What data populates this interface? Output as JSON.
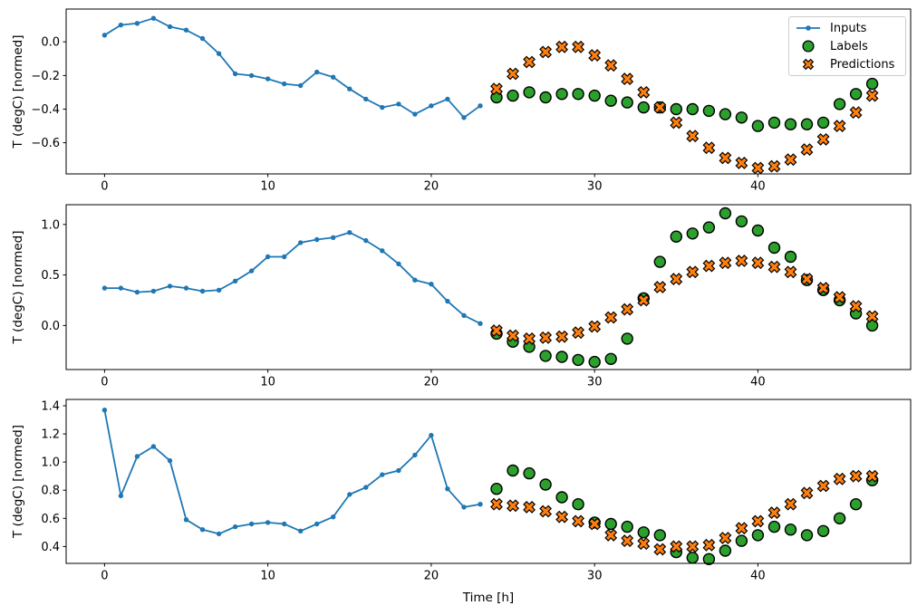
{
  "figure": {
    "background": "#ffffff",
    "xlabel": "Time [h]",
    "ylabel": "T (degC) [normed]",
    "legend": {
      "position": "upper right of subplot 1",
      "entries": [
        {
          "label": "Inputs",
          "marker": "line-dot",
          "color": "#1f77b4"
        },
        {
          "label": "Labels",
          "marker": "filled-circle",
          "color": "#2ca02c"
        },
        {
          "label": "Predictions",
          "marker": "filled-x",
          "color": "#ff7f0e"
        }
      ]
    }
  },
  "chart_data": [
    {
      "type": "line",
      "subplot": 1,
      "ylabel": "T (degC) [normed]",
      "xticks": [
        0,
        10,
        20,
        30,
        40
      ],
      "ytick_values": [
        0.0,
        -0.2,
        -0.4,
        -0.6
      ],
      "ytick_labels": [
        "0.0",
        "−0.2",
        "−0.4",
        "−0.6"
      ],
      "xlim": [
        -2.35,
        49.35
      ],
      "ylim": [
        -0.785,
        0.195
      ],
      "grid": false,
      "series": [
        {
          "name": "Inputs",
          "marker": "line-dot",
          "color": "#1f77b4",
          "x": [
            0,
            1,
            2,
            3,
            4,
            5,
            6,
            7,
            8,
            9,
            10,
            11,
            12,
            13,
            14,
            15,
            16,
            17,
            18,
            19,
            20,
            21,
            22,
            23
          ],
          "y": [
            0.04,
            0.1,
            0.11,
            0.14,
            0.09,
            0.07,
            0.02,
            -0.07,
            -0.19,
            -0.2,
            -0.22,
            -0.25,
            -0.26,
            -0.18,
            -0.21,
            -0.28,
            -0.34,
            -0.39,
            -0.37,
            -0.43,
            -0.38,
            -0.34,
            -0.45,
            -0.38
          ]
        },
        {
          "name": "Labels",
          "marker": "circle",
          "color": "#2ca02c",
          "edge": "#000000",
          "x": [
            24,
            25,
            26,
            27,
            28,
            29,
            30,
            31,
            32,
            33,
            34,
            35,
            36,
            37,
            38,
            39,
            40,
            41,
            42,
            43,
            44,
            45,
            46,
            47
          ],
          "y": [
            -0.33,
            -0.32,
            -0.3,
            -0.33,
            -0.31,
            -0.31,
            -0.32,
            -0.35,
            -0.36,
            -0.39,
            -0.39,
            -0.4,
            -0.4,
            -0.41,
            -0.43,
            -0.45,
            -0.5,
            -0.48,
            -0.49,
            -0.49,
            -0.48,
            -0.37,
            -0.31,
            -0.25
          ]
        },
        {
          "name": "Predictions",
          "marker": "X",
          "color": "#ff7f0e",
          "edge": "#000000",
          "x": [
            24,
            25,
            26,
            27,
            28,
            29,
            30,
            31,
            32,
            33,
            34,
            35,
            36,
            37,
            38,
            39,
            40,
            41,
            42,
            43,
            44,
            45,
            46,
            47
          ],
          "y": [
            -0.28,
            -0.19,
            -0.12,
            -0.06,
            -0.03,
            -0.03,
            -0.08,
            -0.14,
            -0.22,
            -0.3,
            -0.39,
            -0.48,
            -0.56,
            -0.63,
            -0.69,
            -0.72,
            -0.75,
            -0.74,
            -0.7,
            -0.64,
            -0.58,
            -0.5,
            -0.42,
            -0.32
          ]
        }
      ]
    },
    {
      "type": "line",
      "subplot": 2,
      "ylabel": "T (degC) [normed]",
      "xticks": [
        0,
        10,
        20,
        30,
        40
      ],
      "ytick_values": [
        1.0,
        0.5,
        0.0
      ],
      "ytick_labels": [
        "1.0",
        "0.5",
        "0.0"
      ],
      "xlim": [
        -2.35,
        49.35
      ],
      "ylim": [
        -0.435,
        1.195
      ],
      "grid": false,
      "series": [
        {
          "name": "Inputs",
          "marker": "line-dot",
          "color": "#1f77b4",
          "x": [
            0,
            1,
            2,
            3,
            4,
            5,
            6,
            7,
            8,
            9,
            10,
            11,
            12,
            13,
            14,
            15,
            16,
            17,
            18,
            19,
            20,
            21,
            22,
            23
          ],
          "y": [
            0.37,
            0.37,
            0.33,
            0.34,
            0.39,
            0.37,
            0.34,
            0.35,
            0.44,
            0.54,
            0.68,
            0.68,
            0.82,
            0.85,
            0.87,
            0.92,
            0.84,
            0.74,
            0.61,
            0.45,
            0.41,
            0.24,
            0.1,
            0.02
          ]
        },
        {
          "name": "Labels",
          "marker": "circle",
          "color": "#2ca02c",
          "edge": "#000000",
          "x": [
            24,
            25,
            26,
            27,
            28,
            29,
            30,
            31,
            32,
            33,
            34,
            35,
            36,
            37,
            38,
            39,
            40,
            41,
            42,
            43,
            44,
            45,
            46,
            47
          ],
          "y": [
            -0.08,
            -0.16,
            -0.21,
            -0.3,
            -0.31,
            -0.34,
            -0.36,
            -0.33,
            -0.13,
            0.27,
            0.63,
            0.88,
            0.91,
            0.97,
            1.11,
            1.03,
            0.94,
            0.77,
            0.68,
            0.45,
            0.35,
            0.25,
            0.12,
            0.0
          ]
        },
        {
          "name": "Predictions",
          "marker": "X",
          "color": "#ff7f0e",
          "edge": "#000000",
          "x": [
            24,
            25,
            26,
            27,
            28,
            29,
            30,
            31,
            32,
            33,
            34,
            35,
            36,
            37,
            38,
            39,
            40,
            41,
            42,
            43,
            44,
            45,
            46,
            47
          ],
          "y": [
            -0.05,
            -0.1,
            -0.13,
            -0.12,
            -0.11,
            -0.07,
            -0.01,
            0.08,
            0.16,
            0.25,
            0.38,
            0.46,
            0.53,
            0.59,
            0.62,
            0.64,
            0.62,
            0.58,
            0.53,
            0.46,
            0.37,
            0.28,
            0.19,
            0.09
          ]
        }
      ]
    },
    {
      "type": "line",
      "subplot": 3,
      "ylabel": "T (degC) [normed]",
      "xlabel": "Time [h]",
      "xticks": [
        0,
        10,
        20,
        30,
        40
      ],
      "ytick_values": [
        1.4,
        1.2,
        1.0,
        0.8,
        0.6,
        0.4
      ],
      "ytick_labels": [
        "1.4",
        "1.2",
        "1.0",
        "0.8",
        "0.6",
        "0.4"
      ],
      "xlim": [
        -2.35,
        49.35
      ],
      "ylim": [
        0.28,
        1.445
      ],
      "grid": false,
      "series": [
        {
          "name": "Inputs",
          "marker": "line-dot",
          "color": "#1f77b4",
          "x": [
            0,
            1,
            2,
            3,
            4,
            5,
            6,
            7,
            8,
            9,
            10,
            11,
            12,
            13,
            14,
            15,
            16,
            17,
            18,
            19,
            20,
            21,
            22,
            23
          ],
          "y": [
            1.37,
            0.76,
            1.04,
            1.11,
            1.01,
            0.59,
            0.52,
            0.49,
            0.54,
            0.56,
            0.57,
            0.56,
            0.51,
            0.56,
            0.61,
            0.77,
            0.82,
            0.91,
            0.94,
            1.05,
            1.19,
            0.81,
            0.68,
            0.7
          ]
        },
        {
          "name": "Labels",
          "marker": "circle",
          "color": "#2ca02c",
          "edge": "#000000",
          "x": [
            24,
            25,
            26,
            27,
            28,
            29,
            30,
            31,
            32,
            33,
            34,
            35,
            36,
            37,
            38,
            39,
            40,
            41,
            42,
            43,
            44,
            45,
            46,
            47
          ],
          "y": [
            0.81,
            0.94,
            0.92,
            0.84,
            0.75,
            0.7,
            0.57,
            0.56,
            0.54,
            0.5,
            0.48,
            0.36,
            0.32,
            0.31,
            0.37,
            0.44,
            0.48,
            0.54,
            0.52,
            0.48,
            0.51,
            0.6,
            0.7,
            0.87
          ]
        },
        {
          "name": "Predictions",
          "marker": "X",
          "color": "#ff7f0e",
          "edge": "#000000",
          "x": [
            24,
            25,
            26,
            27,
            28,
            29,
            30,
            31,
            32,
            33,
            34,
            35,
            36,
            37,
            38,
            39,
            40,
            41,
            42,
            43,
            44,
            45,
            46,
            47
          ],
          "y": [
            0.7,
            0.69,
            0.68,
            0.65,
            0.61,
            0.58,
            0.56,
            0.48,
            0.44,
            0.42,
            0.38,
            0.4,
            0.4,
            0.41,
            0.46,
            0.53,
            0.58,
            0.64,
            0.7,
            0.78,
            0.83,
            0.88,
            0.9,
            0.9
          ]
        }
      ]
    }
  ]
}
